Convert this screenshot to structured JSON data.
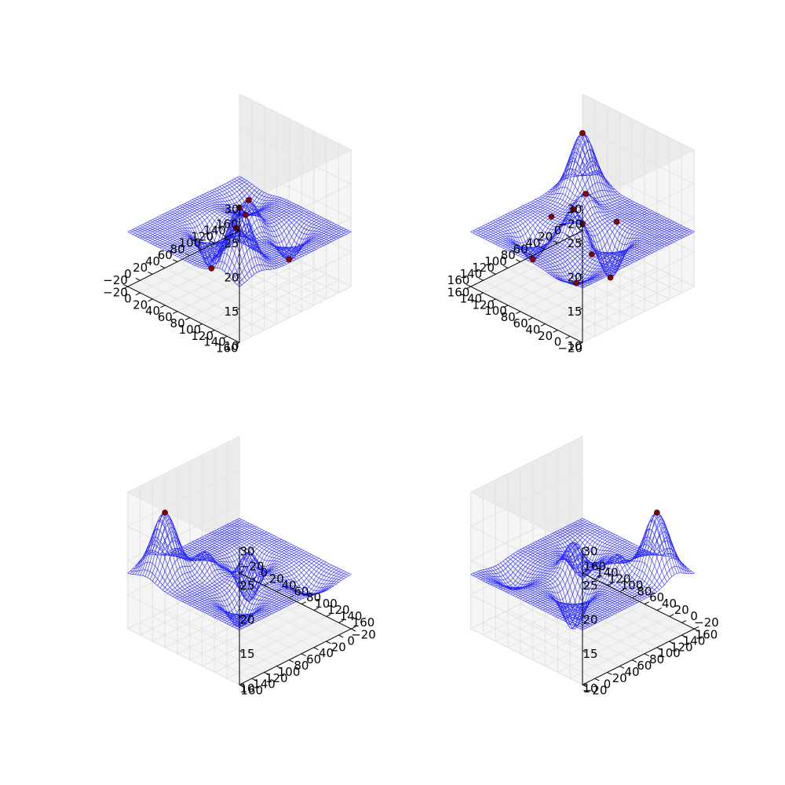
{
  "colors": {
    "surface": "#0000ff",
    "points": "#8b0000",
    "pane": "#f2f2f2",
    "grid": "#e3e3e3",
    "axis": "#000000"
  },
  "chart_data": [
    {
      "type": "surface3d",
      "view": {
        "elevation": 30,
        "azimuth": 45
      },
      "x_ticks": [
        "−20",
        "0",
        "20",
        "40",
        "60",
        "80",
        "100",
        "120",
        "140",
        "160"
      ],
      "y_ticks": [
        "−20",
        "0",
        "20",
        "40",
        "60",
        "80",
        "100",
        "120",
        "140",
        "160"
      ],
      "z_ticks": [
        "10",
        "15",
        "20",
        "25",
        "30"
      ],
      "xlim": [
        -20,
        160
      ],
      "ylim": [
        -20,
        160
      ],
      "zlim": [
        10,
        30
      ],
      "grid": true,
      "highlight_points": 6
    },
    {
      "type": "surface3d",
      "view": {
        "elevation": 30,
        "azimuth": -135
      },
      "x_ticks": [
        "−20",
        "0",
        "20",
        "40",
        "60",
        "80",
        "100",
        "120",
        "140",
        "160"
      ],
      "y_ticks": [
        "−20",
        "0",
        "20",
        "40",
        "60",
        "80",
        "100",
        "120",
        "140",
        "160"
      ],
      "z_ticks": [
        "10",
        "15",
        "20",
        "25",
        "30"
      ],
      "xlim": [
        -20,
        160
      ],
      "ylim": [
        -20,
        160
      ],
      "zlim": [
        10,
        30
      ],
      "grid": true,
      "highlight_points": 10
    },
    {
      "type": "surface3d",
      "view": {
        "elevation": 30,
        "azimuth": -45
      },
      "x_ticks": [
        "−20",
        "0",
        "20",
        "40",
        "60",
        "80",
        "100",
        "120",
        "140",
        "160"
      ],
      "y_ticks": [
        "−20",
        "0",
        "20",
        "40",
        "60",
        "80",
        "100",
        "120",
        "140",
        "160"
      ],
      "z_ticks": [
        "10",
        "15",
        "20",
        "25",
        "30"
      ],
      "xlim": [
        -20,
        160
      ],
      "ylim": [
        -20,
        160
      ],
      "zlim": [
        10,
        30
      ],
      "grid": true,
      "highlight_points": 1
    },
    {
      "type": "surface3d",
      "view": {
        "elevation": 30,
        "azimuth": 135
      },
      "x_ticks": [
        "−20",
        "0",
        "20",
        "40",
        "60",
        "80",
        "100",
        "120",
        "140",
        "160"
      ],
      "y_ticks": [
        "−20",
        "0",
        "20",
        "40",
        "60",
        "80",
        "100",
        "120",
        "140",
        "160"
      ],
      "z_ticks": [
        "10",
        "15",
        "20",
        "25",
        "30"
      ],
      "xlim": [
        -20,
        160
      ],
      "ylim": [
        -20,
        160
      ],
      "zlim": [
        10,
        30
      ],
      "grid": true,
      "highlight_points": 1
    }
  ]
}
